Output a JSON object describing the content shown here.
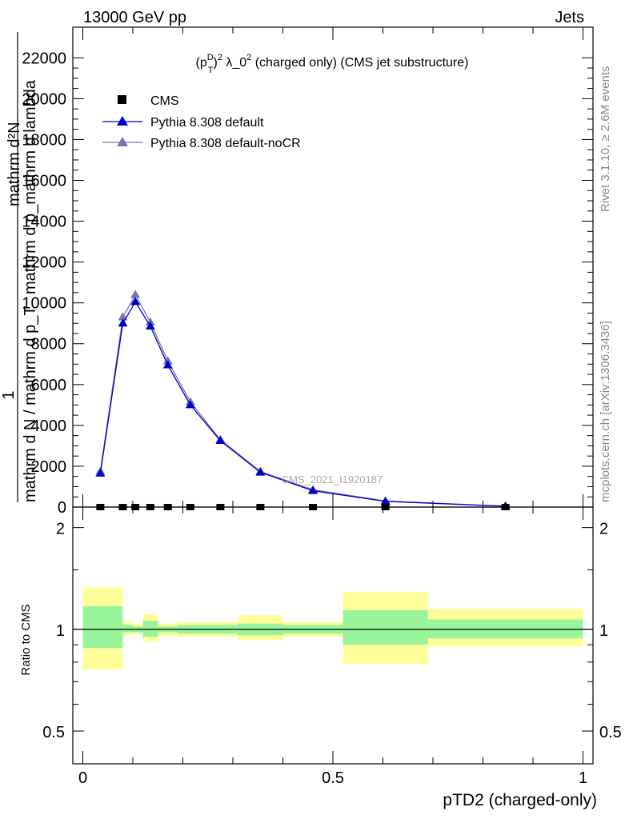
{
  "header": {
    "left": "13000 GeV pp",
    "right": "Jets"
  },
  "side": {
    "rivet": "Rivet 3.1.10, ≥ 2.6M events",
    "mcplots": "mcplots.cern.ch [arXiv:1306.3436]"
  },
  "main": {
    "title_main": "(p",
    "title_sup1": "D",
    "title_sub1": "T",
    "title_sup2": "2",
    "title_rest": " λ_0",
    "title_sup3": "2",
    "title_tail": " (charged only) (CMS jet substructure)",
    "ylabel_top": "mathrm d²N",
    "ylabel_top2": "mathrm d p_mathrm d lambda",
    "ylabel_one": "1",
    "ylabel_bottom": "mathrm d N / mathrm d p_T",
    "watermark": "CMS_2021_I1920187"
  },
  "ratio": {
    "ylabel": "Ratio to CMS"
  },
  "xaxis": {
    "label": "pTD2 (charged-only)"
  },
  "colors": {
    "cms": "#000000",
    "default": "#0000cc",
    "nocr": "#7777aa",
    "band_inner": "#99f599",
    "band_outer": "#ffff99"
  },
  "chart_data": {
    "type": "line",
    "x_bins": [
      0,
      0.08,
      0.1,
      0.12,
      0.15,
      0.19,
      0.24,
      0.31,
      0.4,
      0.52,
      0.69,
      1.0
    ],
    "x_centers": [
      0.035,
      0.08,
      0.105,
      0.135,
      0.17,
      0.215,
      0.275,
      0.355,
      0.46,
      0.605,
      0.845
    ],
    "xlim": [
      -0.02,
      1.02
    ],
    "main_ylim": [
      0,
      23500
    ],
    "main_yticks": [
      0,
      2000,
      4000,
      6000,
      8000,
      10000,
      12000,
      14000,
      16000,
      18000,
      20000,
      22000
    ],
    "main_ytick_labels": [
      "0",
      "2000",
      "4000",
      "6000",
      "8000",
      "10000",
      "12000",
      "14000",
      "16000",
      "18000",
      "20000",
      "22000"
    ],
    "xticks": [
      0,
      0.5,
      1
    ],
    "xtick_labels": [
      "0",
      "0.5",
      "1"
    ],
    "series": [
      {
        "name": "CMS",
        "marker": "square",
        "values": [
          0,
          0,
          0,
          0,
          0,
          0,
          0,
          0,
          0,
          0,
          0
        ]
      },
      {
        "name": "Pythia 8.308 default",
        "marker": "triangle",
        "values": [
          1650,
          9000,
          10050,
          8850,
          6950,
          5000,
          3250,
          1700,
          800,
          280,
          40
        ]
      },
      {
        "name": "Pythia 8.308 default-noCR",
        "marker": "triangle",
        "values": [
          1750,
          9300,
          10400,
          9050,
          7150,
          5150,
          3300,
          1750,
          850,
          300,
          45
        ]
      }
    ],
    "ratio": {
      "ylim": [
        0.4,
        2.3
      ],
      "yticks": [
        0.5,
        1,
        2
      ],
      "ytick_labels": [
        "0.5",
        "1",
        "2"
      ],
      "scale": "log",
      "bands_inner": [
        [
          0.88,
          1.17
        ],
        [
          0.98,
          1.03
        ],
        [
          0.98,
          1.02
        ],
        [
          0.95,
          1.06
        ],
        [
          0.98,
          1.02
        ],
        [
          0.97,
          1.03
        ],
        [
          0.97,
          1.03
        ],
        [
          0.96,
          1.04
        ],
        [
          0.97,
          1.03
        ],
        [
          0.9,
          1.14
        ],
        [
          0.94,
          1.07
        ]
      ],
      "bands_outer": [
        [
          0.76,
          1.33
        ],
        [
          0.96,
          1.05
        ],
        [
          0.97,
          1.04
        ],
        [
          0.92,
          1.11
        ],
        [
          0.96,
          1.04
        ],
        [
          0.95,
          1.05
        ],
        [
          0.95,
          1.05
        ],
        [
          0.93,
          1.1
        ],
        [
          0.95,
          1.05
        ],
        [
          0.79,
          1.29
        ],
        [
          0.89,
          1.15
        ]
      ]
    },
    "legend_position": "top-left"
  }
}
